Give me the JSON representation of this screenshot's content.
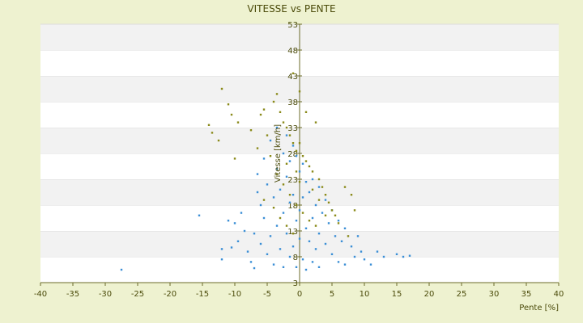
{
  "chart_data": {
    "type": "scatter",
    "title": "VITESSE vs PENTE",
    "xlabel": "Pente [%]",
    "ylabel": "Vitesse [km/h]",
    "xlim": [
      -40,
      40
    ],
    "ylim": [
      3,
      53
    ],
    "xticks": [
      -40,
      -35,
      -30,
      -25,
      -20,
      -15,
      -10,
      -5,
      0,
      5,
      10,
      15,
      20,
      25,
      30,
      35,
      40
    ],
    "yticks": [
      3,
      8,
      13,
      18,
      23,
      28,
      33,
      38,
      43,
      48,
      53
    ],
    "grid": "horizontal bands",
    "legend": "none",
    "colors": {
      "background": "#eef2d0",
      "plot_band_light": "#ffffff",
      "plot_band_dark": "#f2f2f2",
      "axis_text": "#4b4b0a",
      "series_blue": "#3b8fd6",
      "series_olive": "#8a8a1a"
    },
    "series": [
      {
        "color": "#3b8fd6",
        "points": [
          [
            -27.5,
            5.5
          ],
          [
            -15.5,
            16.0
          ],
          [
            -12,
            9.5
          ],
          [
            -12,
            7.5
          ],
          [
            -11,
            15.0
          ],
          [
            -10.5,
            9.8
          ],
          [
            -10,
            14.5
          ],
          [
            -9.5,
            11.0
          ],
          [
            -9.0,
            16.5
          ],
          [
            -8.5,
            13.0
          ],
          [
            -8,
            9.0
          ],
          [
            -7.5,
            7.0
          ],
          [
            -7,
            5.8
          ],
          [
            -7,
            12.5
          ],
          [
            -6.5,
            20.5
          ],
          [
            -6.5,
            24.0
          ],
          [
            -6,
            18.0
          ],
          [
            -6,
            10.5
          ],
          [
            -5.5,
            27.0
          ],
          [
            -5.5,
            15.5
          ],
          [
            -5,
            22.0
          ],
          [
            -5,
            8.5
          ],
          [
            -4.5,
            30.5
          ],
          [
            -4.5,
            12.0
          ],
          [
            -4,
            19.5
          ],
          [
            -4,
            6.5
          ],
          [
            -3.5,
            33.0
          ],
          [
            -3.5,
            25.0
          ],
          [
            -3.5,
            14.0
          ],
          [
            -3,
            21.0
          ],
          [
            -3,
            9.5
          ],
          [
            -2.5,
            28.0
          ],
          [
            -2.5,
            16.5
          ],
          [
            -2.5,
            6.0
          ],
          [
            -2,
            31.5
          ],
          [
            -2,
            23.5
          ],
          [
            -2,
            12.5
          ],
          [
            -1.5,
            26.5
          ],
          [
            -1.5,
            18.5
          ],
          [
            -1.5,
            8.0
          ],
          [
            -1,
            29.5
          ],
          [
            -1,
            20.0
          ],
          [
            -1,
            10.0
          ],
          [
            -0.5,
            27.5
          ],
          [
            -0.5,
            15.0
          ],
          [
            -0.5,
            6.0
          ],
          [
            0,
            24.5
          ],
          [
            0,
            17.0
          ],
          [
            0,
            11.5
          ],
          [
            0.5,
            26.0
          ],
          [
            0.5,
            19.5
          ],
          [
            0.5,
            7.5
          ],
          [
            1,
            22.5
          ],
          [
            1,
            13.5
          ],
          [
            1,
            5.5
          ],
          [
            1.5,
            20.5
          ],
          [
            1.5,
            11.0
          ],
          [
            2,
            23.0
          ],
          [
            2,
            15.5
          ],
          [
            2,
            7.0
          ],
          [
            2.5,
            18.0
          ],
          [
            2.5,
            9.5
          ],
          [
            3,
            21.5
          ],
          [
            3,
            12.5
          ],
          [
            3,
            6.0
          ],
          [
            3.5,
            16.5
          ],
          [
            4,
            19.0
          ],
          [
            4,
            10.5
          ],
          [
            4.5,
            14.5
          ],
          [
            5,
            17.0
          ],
          [
            5,
            8.5
          ],
          [
            5.5,
            12.0
          ],
          [
            6,
            15.0
          ],
          [
            6,
            7.0
          ],
          [
            6.5,
            11.0
          ],
          [
            7,
            13.5
          ],
          [
            7,
            6.5
          ],
          [
            8,
            10.0
          ],
          [
            8.5,
            8.0
          ],
          [
            9,
            12.0
          ],
          [
            9.5,
            9.0
          ],
          [
            10,
            7.5
          ],
          [
            11,
            6.5
          ],
          [
            12,
            9.0
          ],
          [
            13,
            8.0
          ],
          [
            15,
            8.5
          ],
          [
            16,
            8.0
          ],
          [
            17,
            8.2
          ]
        ]
      },
      {
        "color": "#8a8a1a",
        "points": [
          [
            -12,
            40.5
          ],
          [
            -11,
            37.5
          ],
          [
            -10.5,
            35.5
          ],
          [
            -9.5,
            34.0
          ],
          [
            -14,
            33.5
          ],
          [
            -13.5,
            32.0
          ],
          [
            -12.5,
            30.5
          ],
          [
            -10,
            27.0
          ],
          [
            -6,
            35.5
          ],
          [
            -5.5,
            36.5
          ],
          [
            -4,
            38.0
          ],
          [
            -3.5,
            39.5
          ],
          [
            -3,
            36.0
          ],
          [
            -2.5,
            34.0
          ],
          [
            -2,
            33.0
          ],
          [
            -1.5,
            31.5
          ],
          [
            -1,
            30.0
          ],
          [
            -0.5,
            28.5
          ],
          [
            0,
            40.0
          ],
          [
            0,
            30.0
          ],
          [
            0.5,
            27.5
          ],
          [
            1,
            26.5
          ],
          [
            1.5,
            25.5
          ],
          [
            2,
            24.5
          ],
          [
            2.5,
            34.0
          ],
          [
            3,
            23.0
          ],
          [
            3.5,
            21.5
          ],
          [
            4,
            20.0
          ],
          [
            4.5,
            18.5
          ],
          [
            5,
            17.0
          ],
          [
            5.5,
            16.0
          ],
          [
            7,
            21.5
          ],
          [
            8,
            20.0
          ],
          [
            8.5,
            17.0
          ],
          [
            -5,
            31.5
          ],
          [
            -4.5,
            27.5
          ],
          [
            -3.5,
            24.0
          ],
          [
            -2.5,
            22.0
          ],
          [
            -1.5,
            20.0
          ],
          [
            -0.5,
            18.0
          ],
          [
            0.5,
            16.5
          ],
          [
            1.5,
            15.0
          ],
          [
            2.5,
            14.0
          ],
          [
            -6.5,
            29.0
          ],
          [
            -7.5,
            32.5
          ],
          [
            -5.5,
            19.0
          ],
          [
            -4,
            17.5
          ],
          [
            -3,
            15.5
          ],
          [
            -2,
            14.0
          ],
          [
            -1,
            12.5
          ],
          [
            6,
            14.5
          ],
          [
            7.5,
            12.0
          ],
          [
            3,
            19.0
          ],
          [
            4,
            16.0
          ],
          [
            -1,
            43.5
          ],
          [
            1,
            36.0
          ],
          [
            -2,
            26.0
          ],
          [
            2,
            21.0
          ],
          [
            0,
            22.5
          ],
          [
            -0.5,
            24.5
          ]
        ]
      }
    ]
  }
}
